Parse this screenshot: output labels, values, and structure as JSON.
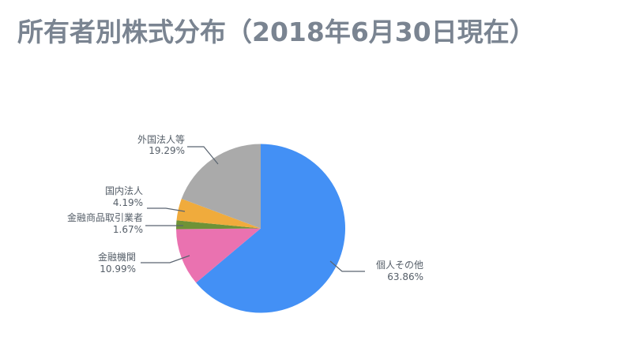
{
  "title": "所有者別株式分布（2018年6月30日現在）",
  "chart_data": {
    "type": "pie",
    "title": "所有者別株式分布（2018年6月30日現在）",
    "start_angle": "12 o'clock",
    "direction": "clockwise",
    "slices": [
      {
        "label": "個人その他",
        "value": 63.86,
        "display": "63.86%",
        "color": "#4390F5"
      },
      {
        "label": "金融機関",
        "value": 10.99,
        "display": "10.99%",
        "color": "#EA72B0"
      },
      {
        "label": "金融商品取引業者",
        "value": 1.67,
        "display": "1.67%",
        "color": "#6E9237"
      },
      {
        "label": "国内法人",
        "value": 4.19,
        "display": "4.19%",
        "color": "#F0AB3C"
      },
      {
        "label": "外国法人等",
        "value": 19.29,
        "display": "19.29%",
        "color": "#AAAAAA"
      }
    ],
    "legend": "none (leader-line labels)"
  }
}
